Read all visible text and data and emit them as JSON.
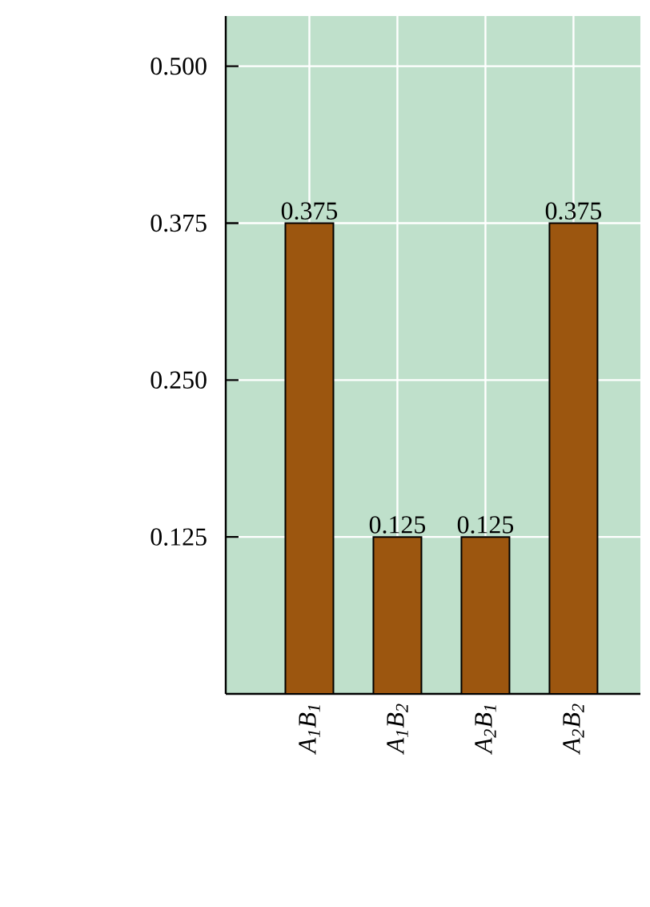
{
  "chart_data": {
    "type": "bar",
    "categories": [
      "A$_{1}$B$_{1}$",
      "A$_{1}$B$_{2}$",
      "A$_{2}$B$_{1}$",
      "A$_{2}$B$_{2}$"
    ],
    "values": [
      0.375,
      0.125,
      0.125,
      0.375
    ],
    "value_labels": [
      "0.375",
      "0.125",
      "0.125",
      "0.375"
    ],
    "color": "#9c560f",
    "ylim": [
      0,
      0.54
    ],
    "yticks": [
      {
        "value": 0.125,
        "label": "0.125"
      },
      {
        "value": 0.25,
        "label": "0.250"
      },
      {
        "value": 0.375,
        "label": "0.375"
      },
      {
        "value": 0.5,
        "label": "0.500"
      }
    ],
    "grid": true
  }
}
